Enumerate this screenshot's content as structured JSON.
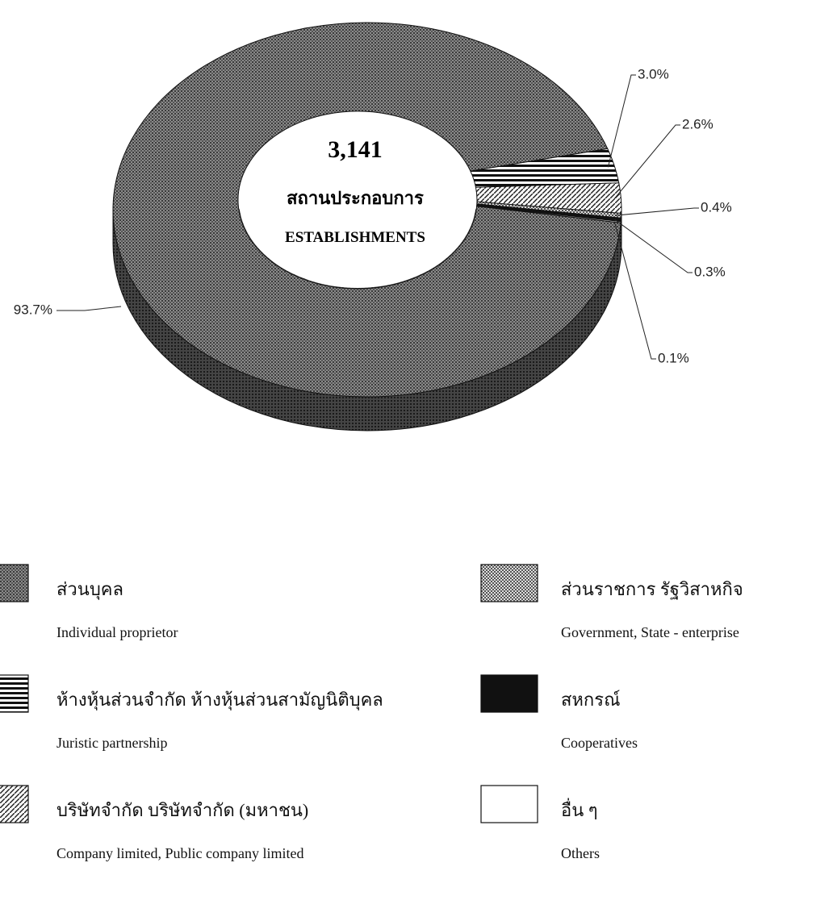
{
  "chart_data": {
    "type": "pie",
    "donut": true,
    "center_text": [
      "3,141",
      "สถานประกอบการ",
      "ESTABLISHMENTS"
    ],
    "categories": [
      "Individual proprietor",
      "Juristic partnership",
      "Company limited, Public company limited",
      "Government, State - enterprise",
      "Cooperatives",
      "Others"
    ],
    "categories_thai": [
      "ส่วนบุคล",
      "ห้างหุ้นส่วนจำกัด ห้างหุ้นส่วนสามัญนิติบุคล",
      "บริษัทจำกัด บริษัทจำกัด (มหาชน)",
      "ส่วนราชการ รัฐวิสาหกิจ",
      "สหกรณ์",
      "อื่น ๆ"
    ],
    "values": [
      93.7,
      3.0,
      2.6,
      0.4,
      0.3,
      0.1
    ],
    "value_labels": [
      "93.7%",
      "3.0%",
      "2.6%",
      "0.4%",
      "0.3%",
      "0.1%"
    ],
    "patterns": [
      "crosshatch",
      "hstripe",
      "diagonal",
      "checker",
      "solid",
      "white"
    ]
  }
}
